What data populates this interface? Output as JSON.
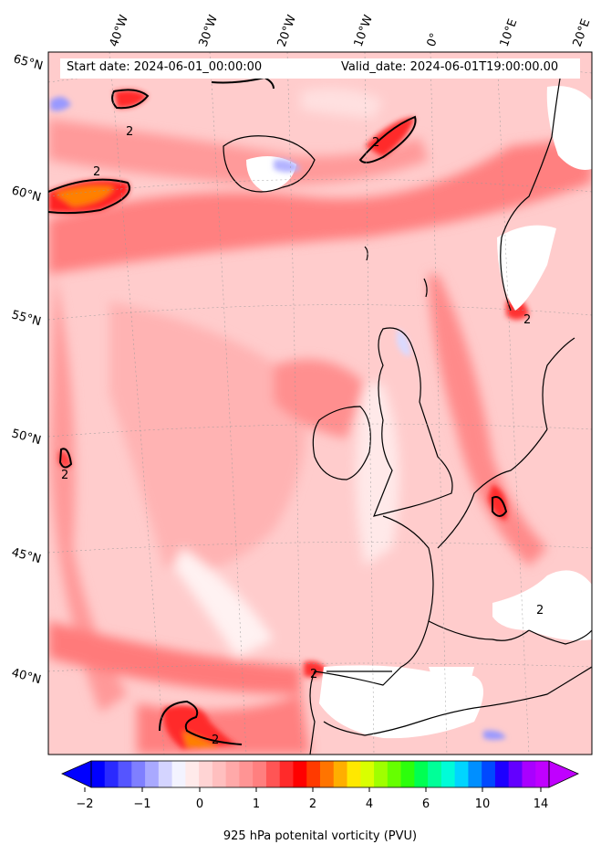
{
  "header": {
    "start_date": "Start date: 2024-06-01_00:00:00",
    "valid_date": "Valid_date: 2024-06-01T19:00:00.00"
  },
  "lon_labels": [
    "40°W",
    "30°W",
    "20°W",
    "10°W",
    "0°",
    "10°E",
    "20°E"
  ],
  "lat_labels": [
    "65°N",
    "60°N",
    "55°N",
    "50°N",
    "45°N",
    "40°N"
  ],
  "contour_label": "2",
  "colorbar": {
    "tick_labels": [
      "−2",
      "−1",
      "0",
      "1",
      "2",
      "4",
      "6",
      "10",
      "14"
    ],
    "label": "925 hPa potenital vorticity (PVU)",
    "colors": [
      "#0000ff",
      "#2a2aff",
      "#5555ff",
      "#7f7fff",
      "#a9a9ff",
      "#d4d4ff",
      "#f3f3ff",
      "#ffeaea",
      "#ffd4d4",
      "#ffbfbf",
      "#ffa9a9",
      "#ff9494",
      "#ff7f7f",
      "#ff5555",
      "#ff2a2a",
      "#ff0000",
      "#ff3a00",
      "#ff7400",
      "#ffae00",
      "#ffe800",
      "#d9ff00",
      "#9fff00",
      "#66ff00",
      "#2cff0c",
      "#00ff52",
      "#00ff98",
      "#00fcd8",
      "#00d5ff",
      "#008fff",
      "#0049ff",
      "#1d00ff",
      "#6300ff",
      "#a900ff",
      "#c000ff"
    ]
  }
}
